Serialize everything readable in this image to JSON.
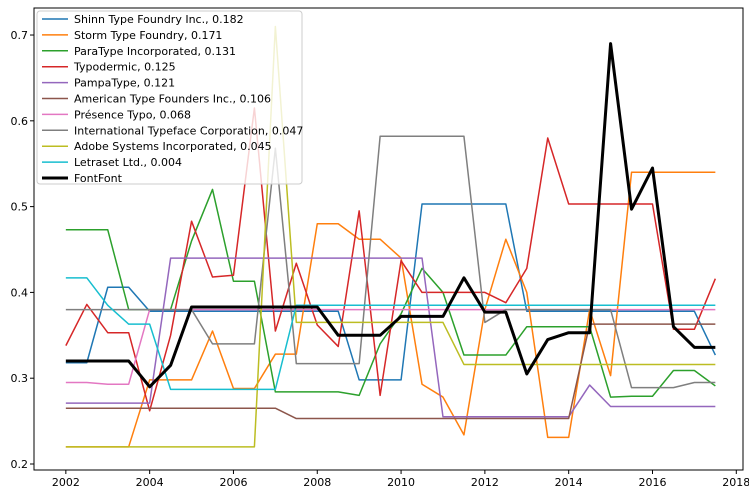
{
  "chart_data": {
    "type": "line",
    "x": [
      2002,
      2002.5,
      2003,
      2003.5,
      2004,
      2004.5,
      2005,
      2005.5,
      2006,
      2006.5,
      2007,
      2007.5,
      2008,
      2008.5,
      2009,
      2009.5,
      2010,
      2010.5,
      2011,
      2011.5,
      2012,
      2012.5,
      2013,
      2013.5,
      2014,
      2014.5,
      2015,
      2015.5,
      2016,
      2016.5,
      2017,
      2017.5
    ],
    "xlim": [
      2001.24,
      2018.16
    ],
    "xticks": [
      2002,
      2004,
      2006,
      2008,
      2010,
      2012,
      2014,
      2016,
      2018
    ],
    "ylim": [
      0.193,
      0.7315
    ],
    "yticks": [
      0.2,
      0.3,
      0.4,
      0.5,
      0.6,
      0.7
    ],
    "legend": "upper left",
    "series": [
      {
        "name": "Shinn Type Foundry Inc., 0.182",
        "color": "#1f77b4",
        "values": [
          0.318,
          0.318,
          0.406,
          0.406,
          0.378,
          0.378,
          0.378,
          0.378,
          0.378,
          0.378,
          0.378,
          0.378,
          0.378,
          0.378,
          0.298,
          0.298,
          0.298,
          0.503,
          0.503,
          0.503,
          0.503,
          0.503,
          0.378,
          0.378,
          0.378,
          0.378,
          0.378,
          0.378,
          0.378,
          0.378,
          0.378,
          0.327
        ]
      },
      {
        "name": "Storm Type Foundry, 0.171",
        "color": "#ff7f0e",
        "values": [
          0.22,
          0.22,
          0.22,
          0.22,
          0.298,
          0.298,
          0.298,
          0.355,
          0.288,
          0.288,
          0.328,
          0.328,
          0.48,
          0.48,
          0.462,
          0.462,
          0.44,
          0.293,
          0.278,
          0.234,
          0.38,
          0.462,
          0.4,
          0.231,
          0.231,
          0.38,
          0.303,
          0.54,
          0.54,
          0.54,
          0.54,
          0.54
        ]
      },
      {
        "name": "ParaType Incorporated, 0.131",
        "color": "#2ca02c",
        "values": [
          0.473,
          0.473,
          0.473,
          0.38,
          0.38,
          0.38,
          0.46,
          0.52,
          0.413,
          0.413,
          0.284,
          0.284,
          0.284,
          0.284,
          0.28,
          0.34,
          0.375,
          0.428,
          0.4,
          0.327,
          0.327,
          0.327,
          0.36,
          0.36,
          0.36,
          0.36,
          0.278,
          0.279,
          0.279,
          0.309,
          0.309,
          0.291
        ]
      },
      {
        "name": "Typodermic, 0.125",
        "color": "#d62728",
        "values": [
          0.338,
          0.386,
          0.353,
          0.353,
          0.262,
          0.35,
          0.483,
          0.418,
          0.42,
          0.615,
          0.355,
          0.434,
          0.362,
          0.337,
          0.495,
          0.28,
          0.437,
          0.4,
          0.4,
          0.4,
          0.4,
          0.388,
          0.428,
          0.58,
          0.503,
          0.503,
          0.503,
          0.503,
          0.503,
          0.357,
          0.357,
          0.416
        ]
      },
      {
        "name": "PampaType, 0.121",
        "color": "#9467bd",
        "values": [
          0.271,
          0.271,
          0.271,
          0.271,
          0.271,
          0.44,
          0.44,
          0.44,
          0.44,
          0.44,
          0.44,
          0.44,
          0.44,
          0.44,
          0.44,
          0.44,
          0.44,
          0.44,
          0.255,
          0.255,
          0.255,
          0.255,
          0.255,
          0.255,
          0.255,
          0.292,
          0.267,
          0.267,
          0.267,
          0.267,
          0.267,
          0.267
        ]
      },
      {
        "name": "American Type Founders Inc., 0.106",
        "color": "#8c564b",
        "values": [
          0.265,
          0.265,
          0.265,
          0.265,
          0.265,
          0.265,
          0.265,
          0.265,
          0.265,
          0.265,
          0.265,
          0.253,
          0.253,
          0.253,
          0.253,
          0.253,
          0.253,
          0.253,
          0.253,
          0.253,
          0.253,
          0.253,
          0.253,
          0.253,
          0.253,
          0.363,
          0.363,
          0.363,
          0.363,
          0.363,
          0.363,
          0.363
        ]
      },
      {
        "name": "Présence Typo, 0.068",
        "color": "#e377c2",
        "values": [
          0.295,
          0.295,
          0.293,
          0.293,
          0.38,
          0.38,
          0.38,
          0.38,
          0.38,
          0.38,
          0.38,
          0.38,
          0.38,
          0.38,
          0.38,
          0.38,
          0.38,
          0.38,
          0.38,
          0.38,
          0.38,
          0.38,
          0.38,
          0.38,
          0.38,
          0.38,
          0.38,
          0.38,
          0.38,
          0.38,
          0.38,
          0.38
        ]
      },
      {
        "name": "International Typeface Corporation, 0.047",
        "color": "#7f7f7f",
        "values": [
          0.38,
          0.38,
          0.38,
          0.38,
          0.38,
          0.38,
          0.38,
          0.34,
          0.34,
          0.34,
          0.568,
          0.317,
          0.317,
          0.317,
          0.317,
          0.582,
          0.582,
          0.582,
          0.582,
          0.582,
          0.365,
          0.38,
          0.38,
          0.38,
          0.38,
          0.38,
          0.38,
          0.289,
          0.289,
          0.289,
          0.295,
          0.295
        ]
      },
      {
        "name": "Adobe Systems Incorporated, 0.045",
        "color": "#bcbd22",
        "values": [
          0.22,
          0.22,
          0.22,
          0.22,
          0.22,
          0.22,
          0.22,
          0.22,
          0.22,
          0.22,
          0.71,
          0.365,
          0.365,
          0.365,
          0.365,
          0.365,
          0.365,
          0.365,
          0.365,
          0.316,
          0.316,
          0.316,
          0.316,
          0.316,
          0.316,
          0.316,
          0.316,
          0.316,
          0.316,
          0.316,
          0.316,
          0.316
        ]
      },
      {
        "name": "Letraset Ltd., 0.004",
        "color": "#17becf",
        "values": [
          0.417,
          0.417,
          0.385,
          0.363,
          0.363,
          0.287,
          0.287,
          0.287,
          0.287,
          0.287,
          0.287,
          0.385,
          0.385,
          0.385,
          0.385,
          0.385,
          0.385,
          0.385,
          0.385,
          0.385,
          0.385,
          0.385,
          0.385,
          0.385,
          0.385,
          0.385,
          0.385,
          0.385,
          0.385,
          0.385,
          0.385,
          0.385
        ]
      },
      {
        "name": "FontFont",
        "color": "#000000",
        "width": 3,
        "values": [
          0.32,
          0.32,
          0.32,
          0.32,
          0.29,
          0.315,
          0.383,
          0.383,
          0.383,
          0.383,
          0.383,
          0.383,
          0.383,
          0.35,
          0.35,
          0.35,
          0.372,
          0.372,
          0.372,
          0.417,
          0.377,
          0.377,
          0.305,
          0.345,
          0.353,
          0.353,
          0.69,
          0.497,
          0.545,
          0.36,
          0.336,
          0.336
        ]
      }
    ]
  }
}
